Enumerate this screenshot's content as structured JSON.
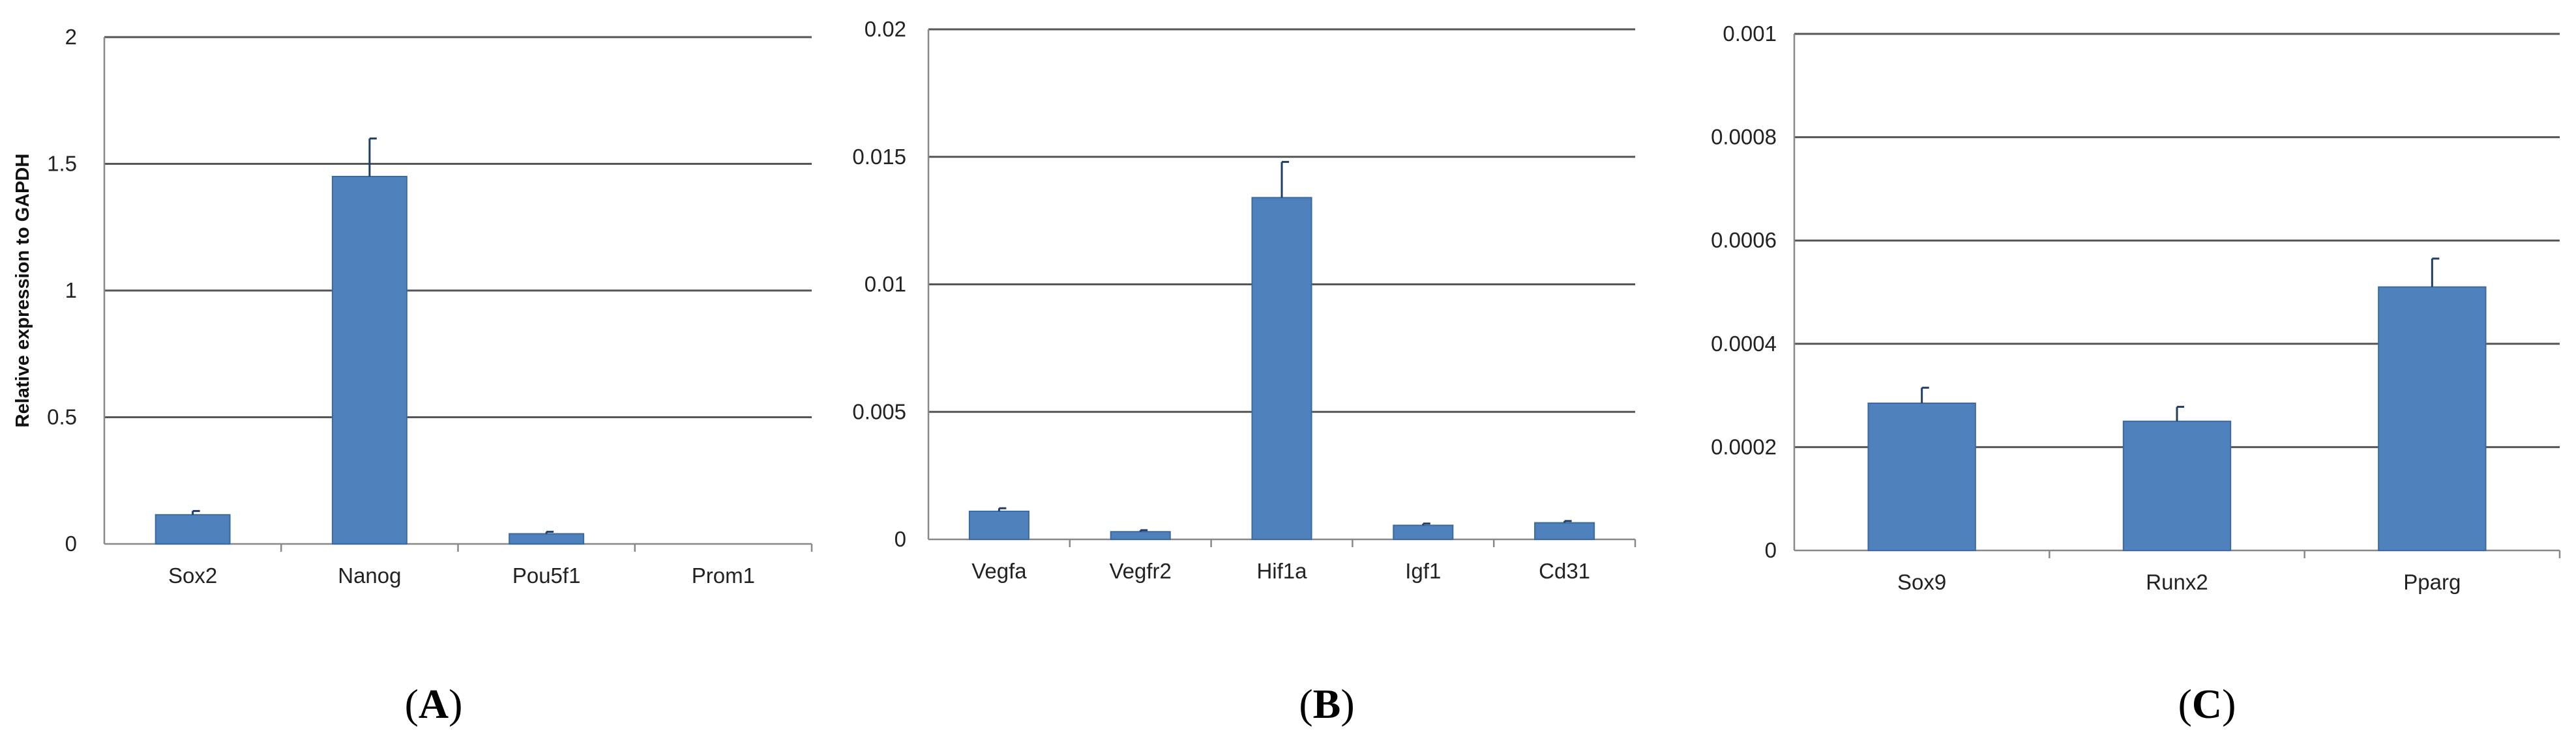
{
  "chart_data": [
    {
      "type": "bar",
      "panel_label": "A",
      "ylabel": "Relative expression to GAPDH",
      "ylim": [
        0,
        2
      ],
      "yticks": [
        "0",
        "0.5",
        "1",
        "1.5",
        "2"
      ],
      "categories": [
        "Sox2",
        "Nanog",
        "Pou5f1",
        "Prom1"
      ],
      "values": [
        0.115,
        1.45,
        0.04,
        0
      ],
      "errors": [
        0.015,
        0.15,
        0.008,
        0
      ],
      "grid": true,
      "bar_color": "#4f81bd"
    },
    {
      "type": "bar",
      "panel_label": "B",
      "ylabel": "",
      "ylim": [
        0,
        0.02
      ],
      "yticks": [
        "0",
        "0.005",
        "0.01",
        "0.015",
        "0.02"
      ],
      "categories": [
        "Vegfa",
        "Vegfr2",
        "Hif1a",
        "Igf1",
        "Cd31"
      ],
      "values": [
        0.0011,
        0.0003,
        0.0134,
        0.00055,
        0.00065
      ],
      "errors": [
        0.00012,
        6e-05,
        0.0014,
        7e-05,
        7e-05
      ],
      "grid": true,
      "bar_color": "#4f81bd"
    },
    {
      "type": "bar",
      "panel_label": "C",
      "ylabel": "",
      "ylim": [
        0,
        0.001
      ],
      "yticks": [
        "0",
        "0.0002",
        "0.0004",
        "0.0006",
        "0.0008",
        "0.001"
      ],
      "categories": [
        "Sox9",
        "Runx2",
        "Pparg"
      ],
      "values": [
        0.000285,
        0.00025,
        0.00051
      ],
      "errors": [
        3e-05,
        2.8e-05,
        5.5e-05
      ],
      "grid": true,
      "bar_color": "#4f81bd"
    }
  ]
}
